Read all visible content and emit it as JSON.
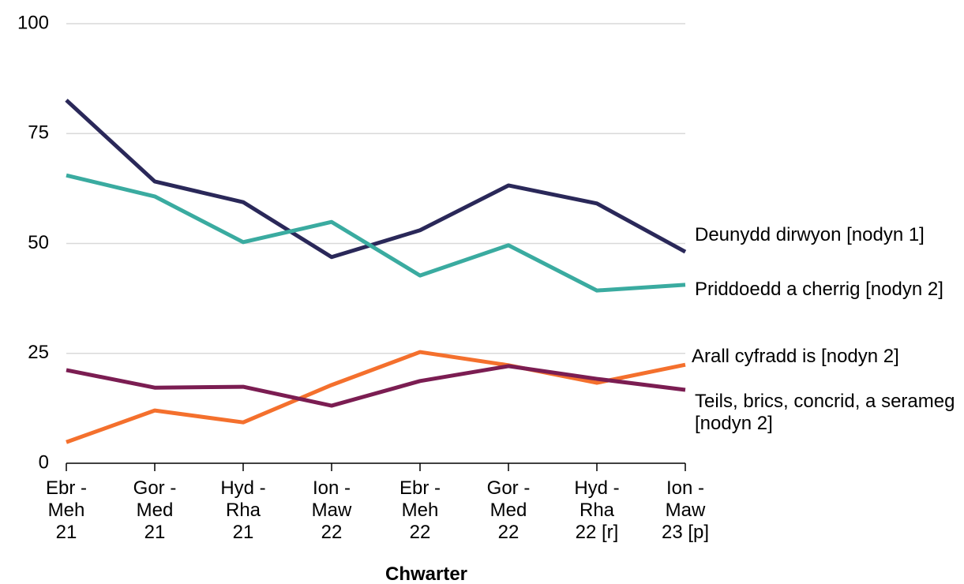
{
  "chart_data": {
    "type": "line",
    "x_label": "Chwarter",
    "categories": [
      "Ebr -\nMeh\n21",
      "Gor -\nMed\n21",
      "Hyd -\nRha\n21",
      "Ion -\nMaw\n22",
      "Ebr -\nMeh\n22",
      "Gor -\nMed\n22",
      "Hyd -\nRha\n22 [r]",
      "Ion -\nMaw\n23 [p]"
    ],
    "series": [
      {
        "name": "Deunydd dirwyon  [nodyn 1]",
        "color": "#2a2859",
        "values": [
          82.6,
          64.1,
          59.4,
          46.9,
          53.0,
          63.2,
          59.1,
          48.1
        ]
      },
      {
        "name": "Priddoedd a cherrig [nodyn 2]",
        "color": "#3aaba0",
        "values": [
          65.5,
          60.7,
          50.3,
          54.9,
          42.7,
          49.6,
          39.3,
          40.6
        ]
      },
      {
        "name": "Arall cyfradd is [nodyn 2]",
        "color": "#f4702d",
        "values": [
          4.8,
          12.0,
          9.3,
          17.8,
          25.3,
          22.3,
          18.3,
          22.4
        ]
      },
      {
        "name": "Teils, brics, concrid, a serameg [nodyn 2]",
        "color": "#7b1d52",
        "values": [
          21.2,
          17.2,
          17.4,
          13.1,
          18.7,
          22.1,
          19.2,
          16.7
        ]
      }
    ],
    "ylim": [
      0,
      100
    ],
    "yticks": [
      0,
      25,
      50,
      75,
      100
    ],
    "grid": true
  }
}
